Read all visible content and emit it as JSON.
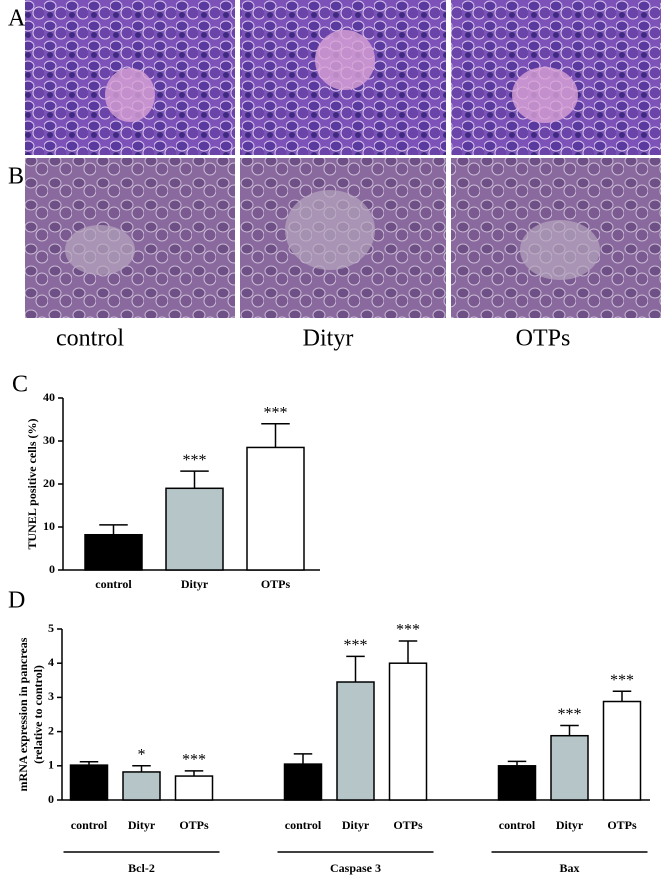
{
  "panel_labels": [
    "A",
    "B",
    "C",
    "D"
  ],
  "image_labels": [
    "control",
    "Dityr",
    "OTPs"
  ],
  "chart_data": [
    {
      "type": "bar",
      "y_label": "TUNEL positive cells (%)",
      "categories": [
        "control",
        "Dityr",
        "OTPs"
      ],
      "values": [
        8.2,
        19,
        28.5
      ],
      "errors": [
        2.3,
        4,
        5.5
      ],
      "colors": [
        "#000000",
        "#b5c5c8",
        "#ffffff"
      ],
      "annotations": [
        null,
        "***",
        "***"
      ],
      "ylim": [
        0,
        40
      ],
      "yticks": [
        0,
        10,
        20,
        30,
        40
      ]
    },
    {
      "type": "grouped_bar",
      "y_label": [
        "mRNA expression in pancreas",
        "(relative to control)"
      ],
      "categories": [
        "Bcl-2",
        "Caspase 3",
        "Bax"
      ],
      "series": [
        {
          "name": "control",
          "color": "#000000",
          "values": [
            1.02,
            1.05,
            1.0
          ],
          "errors": [
            0.1,
            0.3,
            0.13
          ],
          "annotations": [
            null,
            null,
            null
          ]
        },
        {
          "name": "Dityr",
          "color": "#b5c5c8",
          "values": [
            0.82,
            3.45,
            1.88
          ],
          "errors": [
            0.18,
            0.75,
            0.3
          ],
          "annotations": [
            "*",
            "***",
            "***"
          ]
        },
        {
          "name": "OTPs",
          "color": "#ffffff",
          "values": [
            0.7,
            4.0,
            2.88
          ],
          "errors": [
            0.15,
            0.65,
            0.3
          ],
          "annotations": [
            "***",
            "***",
            "***"
          ]
        }
      ],
      "ylim": [
        0,
        5
      ],
      "yticks": [
        0,
        1,
        2,
        3,
        4,
        5
      ]
    }
  ]
}
